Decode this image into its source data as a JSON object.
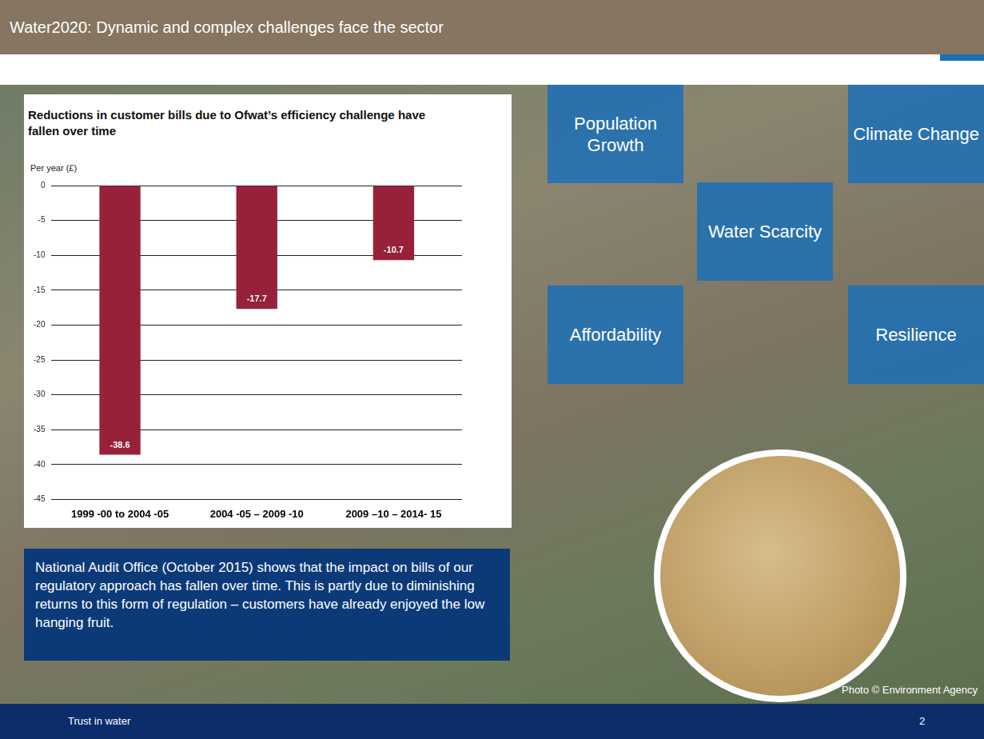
{
  "header": "Water2020: Dynamic and complex challenges face the sector",
  "chart_data": {
    "type": "bar",
    "title": "Reductions in customer bills due to Ofwat’s efficiency challenge have fallen over time",
    "y_label": "Per year (£)",
    "categories": [
      "1999 -00 to 2004 -05",
      "2004 -05 – 2009 -10",
      "2009 –10 – 2014- 15"
    ],
    "values": [
      -38.6,
      -17.7,
      -10.7
    ],
    "color": "#98213a",
    "ylim": [
      -45,
      0
    ],
    "yticks": [
      -45,
      -40,
      -35,
      -30,
      -25,
      -20,
      -15,
      -10,
      -5,
      0
    ],
    "grid": true,
    "data_labels": true
  },
  "note": "National Audit Office (October 2015) shows that the impact on bills of our regulatory approach has fallen over time. This is partly due to diminishing returns to this form of regulation – customers have already enjoyed the low hanging fruit.",
  "tags": [
    "Population Growth",
    "Climate Change",
    "Water Scarcity",
    "Affordability",
    "Resilience"
  ],
  "photo_credit": "Photo © Environment Agency",
  "footer": {
    "text": "Trust in water",
    "page": "2"
  }
}
